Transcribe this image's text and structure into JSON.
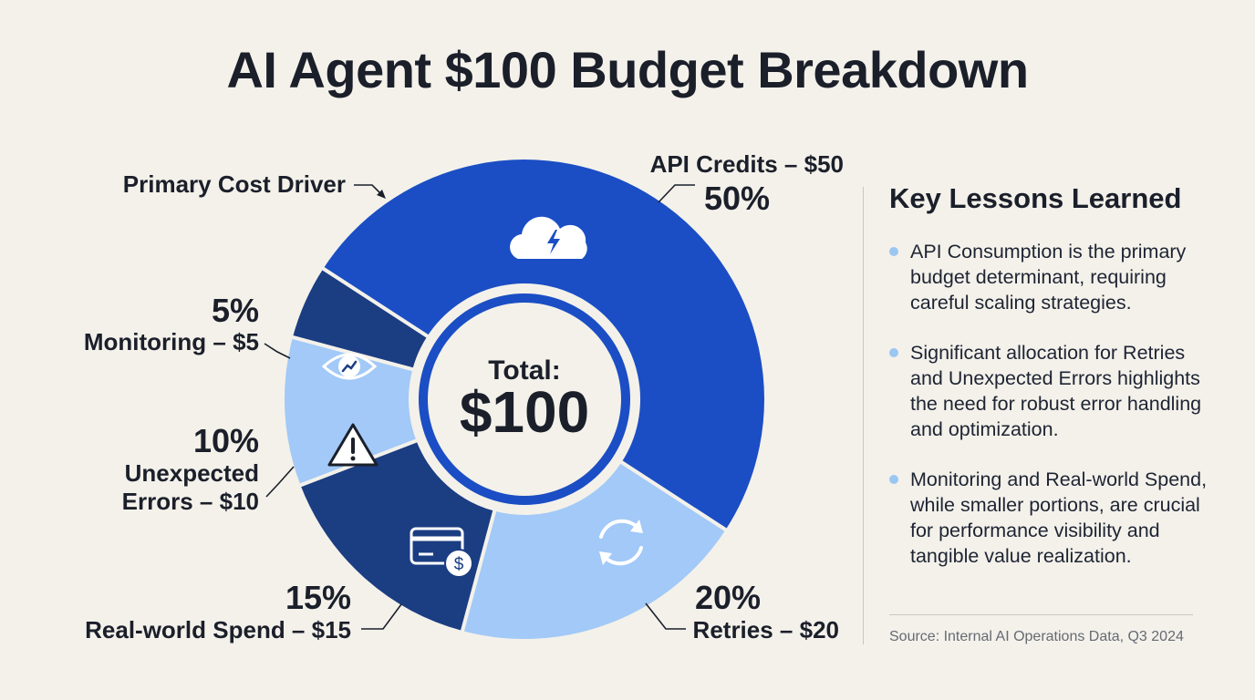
{
  "title": "AI Agent $100 Budget Breakdown",
  "chart_data": {
    "type": "pie",
    "center_label": "Total:",
    "center_value": "$100",
    "slices": [
      {
        "label": "API Credits – $50",
        "value": 50,
        "percent_label": "50%",
        "color": "#1b4ec4",
        "icon": "cloud-lightning-icon"
      },
      {
        "label": "Retries – $20",
        "value": 20,
        "percent_label": "20%",
        "color": "#a2c9f7",
        "icon": "refresh-icon"
      },
      {
        "label": "Real-world Spend – $15",
        "value": 15,
        "percent_label": "15%",
        "color": "#1b3d82",
        "icon": "credit-card-dollar-icon"
      },
      {
        "label": "Unexpected Errors – $10",
        "label_lines": [
          "Unexpected",
          "Errors – $10"
        ],
        "value": 10,
        "percent_label": "10%",
        "color": "#a2c9f7",
        "icon": "warning-icon"
      },
      {
        "label": "Monitoring – $5",
        "value": 5,
        "percent_label": "5%",
        "color": "#1b3d82",
        "icon": "eye-chart-icon"
      }
    ],
    "annotation": "Primary Cost Driver"
  },
  "sidebar": {
    "title": "Key Lessons Learned",
    "lessons": [
      "API Consumption is the primary budget determinant, requiring careful scaling strategies.",
      "Significant allocation for Retries and Unexpected Errors highlights the need for robust error handling and optimization.",
      "Monitoring and Real-world Spend, while smaller portions, are crucial for performance visibility and tangible value realization."
    ],
    "source": "Source: Internal AI Operations Data, Q3 2024"
  }
}
